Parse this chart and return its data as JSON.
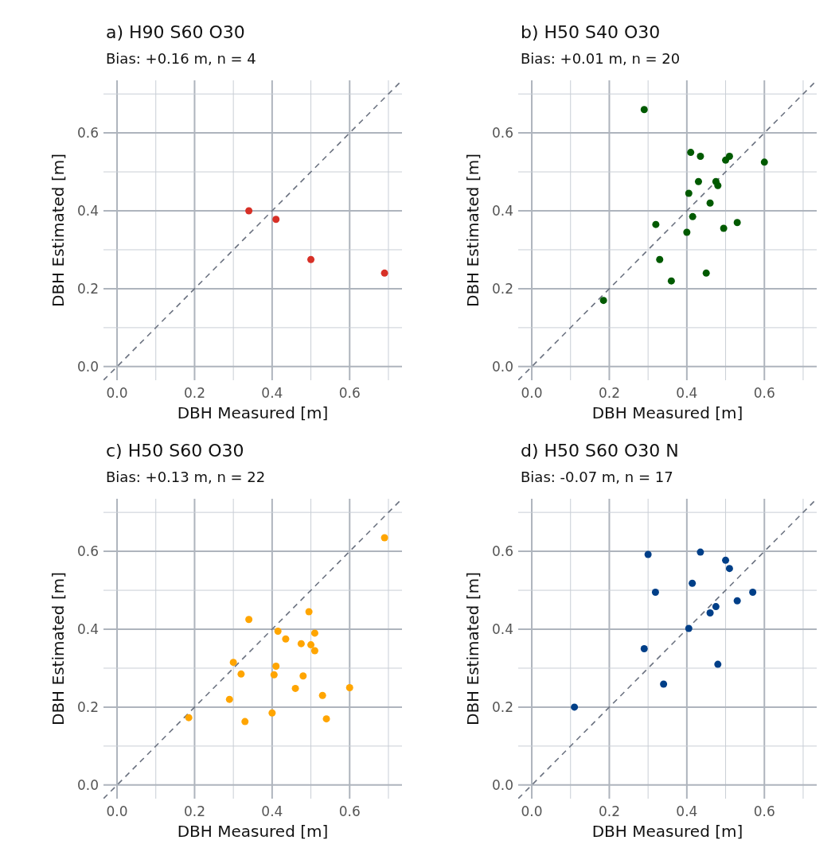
{
  "chart_data": [
    {
      "type": "scatter",
      "title": "a) H90 S60 O30",
      "subtitle": "Bias: +0.16 m, n = 4",
      "xlabel": "DBH Measured [m]",
      "ylabel": "DBH Estimated [m]",
      "xlim": [
        -0.035,
        0.735
      ],
      "ylim": [
        -0.035,
        0.735
      ],
      "xticks": [
        {
          "value": 0,
          "label": "0.0"
        },
        {
          "value": 0.1,
          "label": null
        },
        {
          "value": 0.2,
          "label": "0.2"
        },
        {
          "value": 0.3,
          "label": null
        },
        {
          "value": 0.4,
          "label": "0.4"
        },
        {
          "value": 0.5,
          "label": null
        },
        {
          "value": 0.6,
          "label": "0.6"
        },
        {
          "value": 0.7,
          "label": null
        }
      ],
      "yticks": [
        {
          "value": 0,
          "label": "0.0"
        },
        {
          "value": 0.1,
          "label": null
        },
        {
          "value": 0.2,
          "label": "0.2"
        },
        {
          "value": 0.3,
          "label": null
        },
        {
          "value": 0.4,
          "label": "0.4"
        },
        {
          "value": 0.5,
          "label": null
        },
        {
          "value": 0.6,
          "label": "0.6"
        },
        {
          "value": 0.7,
          "label": null
        }
      ],
      "grid": true,
      "series": [
        {
          "type": "line",
          "color": "#6b7280",
          "line_style": "dashed",
          "marker": "none",
          "x": [
            -0.035,
            0.735
          ],
          "values": [
            -0.035,
            0.735
          ]
        },
        {
          "color": "#d73027",
          "marker": "circle",
          "x": [
            0.34,
            0.41,
            0.5,
            0.69
          ],
          "values": [
            0.4,
            0.378,
            0.275,
            0.24
          ]
        }
      ]
    },
    {
      "type": "scatter",
      "title": "b) H50 S40 O30",
      "subtitle": "Bias: +0.01 m, n = 20",
      "xlabel": "DBH Measured [m]",
      "ylabel": "DBH Estimated [m]",
      "xlim": [
        -0.035,
        0.735
      ],
      "ylim": [
        -0.035,
        0.735
      ],
      "xticks": [
        {
          "value": 0,
          "label": "0.0"
        },
        {
          "value": 0.1,
          "label": null
        },
        {
          "value": 0.2,
          "label": "0.2"
        },
        {
          "value": 0.3,
          "label": null
        },
        {
          "value": 0.4,
          "label": "0.4"
        },
        {
          "value": 0.5,
          "label": null
        },
        {
          "value": 0.6,
          "label": "0.6"
        },
        {
          "value": 0.7,
          "label": null
        }
      ],
      "yticks": [
        {
          "value": 0,
          "label": "0.0"
        },
        {
          "value": 0.1,
          "label": null
        },
        {
          "value": 0.2,
          "label": "0.2"
        },
        {
          "value": 0.3,
          "label": null
        },
        {
          "value": 0.4,
          "label": "0.4"
        },
        {
          "value": 0.5,
          "label": null
        },
        {
          "value": 0.6,
          "label": "0.6"
        },
        {
          "value": 0.7,
          "label": null
        }
      ],
      "grid": true,
      "series": [
        {
          "type": "line",
          "color": "#6b7280",
          "line_style": "dashed",
          "marker": "none",
          "x": [
            -0.035,
            0.735
          ],
          "values": [
            -0.035,
            0.735
          ]
        },
        {
          "color": "#005a00",
          "marker": "circle",
          "x": [
            0.29,
            0.41,
            0.435,
            0.5,
            0.51,
            0.6,
            0.43,
            0.475,
            0.48,
            0.405,
            0.46,
            0.415,
            0.32,
            0.4,
            0.495,
            0.53,
            0.33,
            0.36,
            0.45,
            0.185
          ],
          "values": [
            0.66,
            0.55,
            0.54,
            0.53,
            0.54,
            0.525,
            0.475,
            0.475,
            0.465,
            0.445,
            0.42,
            0.385,
            0.365,
            0.345,
            0.355,
            0.37,
            0.275,
            0.22,
            0.24,
            0.17
          ]
        }
      ]
    },
    {
      "type": "scatter",
      "title": "c) H50 S60 O30",
      "subtitle": "Bias: +0.13 m, n = 22",
      "xlabel": "DBH Measured [m]",
      "ylabel": "DBH Estimated [m]",
      "xlim": [
        -0.035,
        0.735
      ],
      "ylim": [
        -0.035,
        0.735
      ],
      "xticks": [
        {
          "value": 0,
          "label": "0.0"
        },
        {
          "value": 0.1,
          "label": null
        },
        {
          "value": 0.2,
          "label": "0.2"
        },
        {
          "value": 0.3,
          "label": null
        },
        {
          "value": 0.4,
          "label": "0.4"
        },
        {
          "value": 0.5,
          "label": null
        },
        {
          "value": 0.6,
          "label": "0.6"
        },
        {
          "value": 0.7,
          "label": null
        }
      ],
      "yticks": [
        {
          "value": 0,
          "label": "0.0"
        },
        {
          "value": 0.1,
          "label": null
        },
        {
          "value": 0.2,
          "label": "0.2"
        },
        {
          "value": 0.3,
          "label": null
        },
        {
          "value": 0.4,
          "label": "0.4"
        },
        {
          "value": 0.5,
          "label": null
        },
        {
          "value": 0.6,
          "label": "0.6"
        },
        {
          "value": 0.7,
          "label": null
        }
      ],
      "grid": true,
      "series": [
        {
          "type": "line",
          "color": "#6b7280",
          "line_style": "dashed",
          "marker": "none",
          "x": [
            -0.035,
            0.735
          ],
          "values": [
            -0.035,
            0.735
          ]
        },
        {
          "color": "#ffa500",
          "marker": "circle",
          "x": [
            0.185,
            0.29,
            0.3,
            0.32,
            0.33,
            0.34,
            0.4,
            0.405,
            0.41,
            0.415,
            0.435,
            0.46,
            0.475,
            0.48,
            0.495,
            0.5,
            0.51,
            0.51,
            0.53,
            0.54,
            0.6,
            0.69
          ],
          "values": [
            0.173,
            0.22,
            0.315,
            0.285,
            0.163,
            0.425,
            0.185,
            0.283,
            0.305,
            0.395,
            0.375,
            0.248,
            0.363,
            0.28,
            0.445,
            0.36,
            0.39,
            0.345,
            0.23,
            0.17,
            0.25,
            0.635
          ]
        }
      ]
    },
    {
      "type": "scatter",
      "title": "d) H50 S60 O30 N",
      "subtitle": "Bias: -0.07 m, n = 17",
      "xlabel": "DBH Measured [m]",
      "ylabel": "DBH Estimated [m]",
      "xlim": [
        -0.035,
        0.735
      ],
      "ylim": [
        -0.035,
        0.735
      ],
      "xticks": [
        {
          "value": 0,
          "label": "0.0"
        },
        {
          "value": 0.1,
          "label": null
        },
        {
          "value": 0.2,
          "label": "0.2"
        },
        {
          "value": 0.3,
          "label": null
        },
        {
          "value": 0.4,
          "label": "0.4"
        },
        {
          "value": 0.5,
          "label": null
        },
        {
          "value": 0.6,
          "label": "0.6"
        },
        {
          "value": 0.7,
          "label": null
        }
      ],
      "yticks": [
        {
          "value": 0,
          "label": "0.0"
        },
        {
          "value": 0.1,
          "label": null
        },
        {
          "value": 0.2,
          "label": "0.2"
        },
        {
          "value": 0.3,
          "label": null
        },
        {
          "value": 0.4,
          "label": "0.4"
        },
        {
          "value": 0.5,
          "label": null
        },
        {
          "value": 0.6,
          "label": "0.6"
        },
        {
          "value": 0.7,
          "label": null
        }
      ],
      "grid": true,
      "series": [
        {
          "type": "line",
          "color": "#6b7280",
          "line_style": "dashed",
          "marker": "none",
          "x": [
            -0.035,
            0.735
          ],
          "values": [
            -0.035,
            0.735
          ]
        },
        {
          "color": "#003f88",
          "marker": "circle",
          "x": [
            0.11,
            0.3,
            0.435,
            0.5,
            0.51,
            0.414,
            0.319,
            0.57,
            0.53,
            0.475,
            0.46,
            0.405,
            0.29,
            0.48,
            0.34
          ],
          "values": [
            0.2,
            0.592,
            0.598,
            0.577,
            0.556,
            0.518,
            0.495,
            0.495,
            0.473,
            0.458,
            0.442,
            0.402,
            0.35,
            0.31,
            0.259
          ]
        }
      ]
    }
  ]
}
